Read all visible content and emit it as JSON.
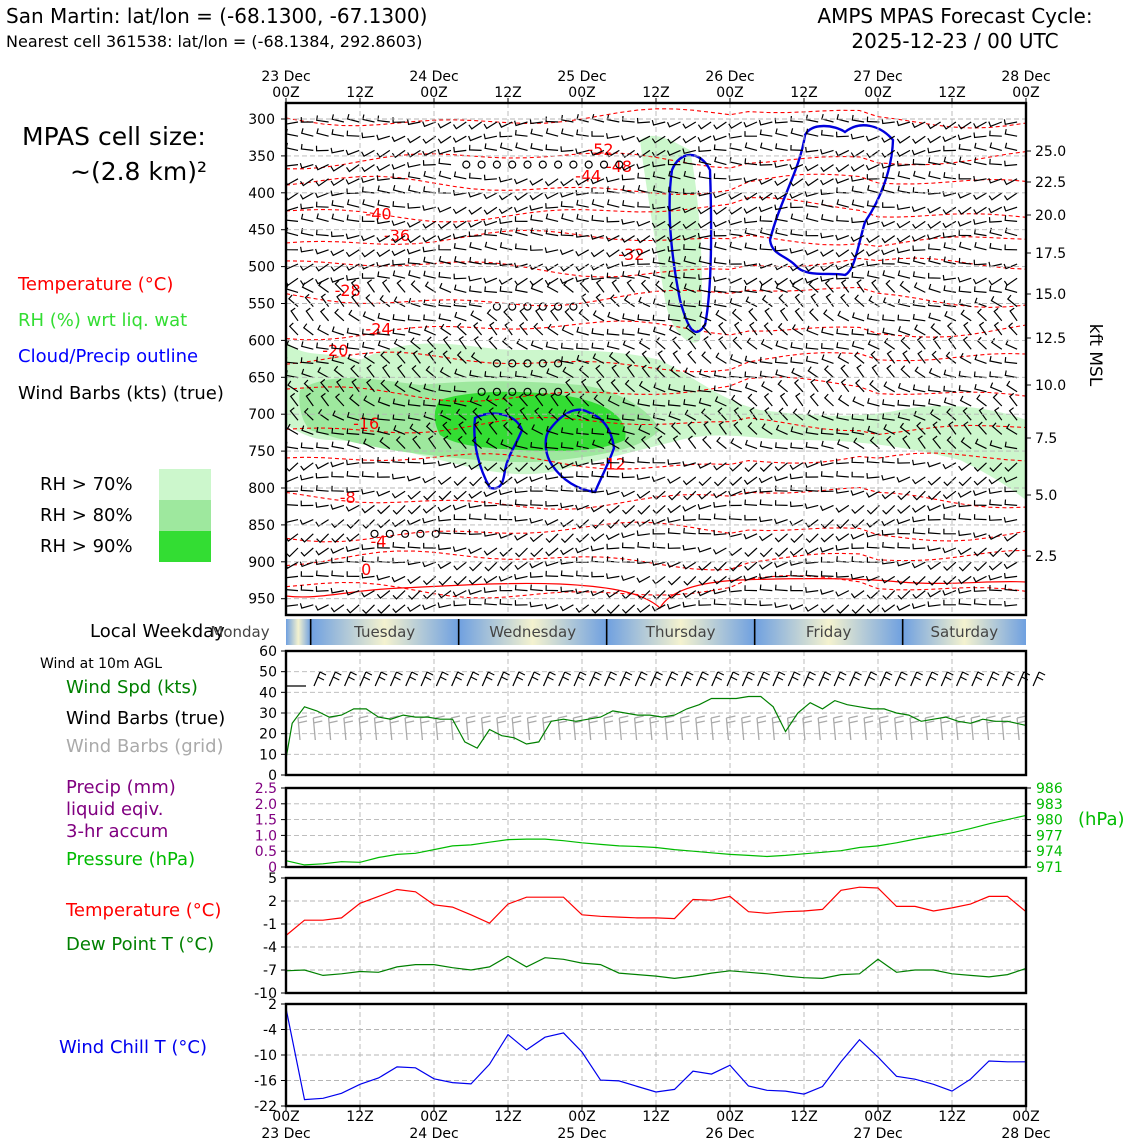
{
  "header": {
    "site_line": "San Martin: lat/lon = (-68.1300, -67.1300)",
    "cell_line": "Nearest cell 361538: lat/lon = (-68.1384, 292.8603)",
    "cycle_line1": "AMPS MPAS Forecast Cycle:",
    "cycle_line2": "2025-12-23 / 00 UTC"
  },
  "cell_size": {
    "line1": "MPAS cell size:",
    "line2": "~(2.8 km)²"
  },
  "legend": {
    "temperature": "Temperature (°C)",
    "rh": "RH (%) wrt liq. wat",
    "cloud": "Cloud/Precip outline",
    "barbs": "Wind Barbs (kts) (true)",
    "rh70": "RH > 70%",
    "rh80": "RH > 80%",
    "rh90": "RH > 90%",
    "colors": {
      "rh70": "#ccf7cc",
      "rh80": "#9ee89e",
      "rh90": "#33dd33"
    }
  },
  "weekday": {
    "label": "Local Weekday",
    "days": [
      "Monday",
      "Tuesday",
      "Wednesday",
      "Thursday",
      "Friday",
      "Saturday"
    ]
  },
  "wind_labels": {
    "title": "Wind at 10m AGL",
    "speed": "Wind Spd (kts)",
    "barbs_true": "Wind Barbs (true)",
    "barbs_grid": "Wind Barbs (grid)"
  },
  "precip_labels": {
    "l1": "Precip (mm)",
    "l2": "liquid eqiv.",
    "l3": "3-hr accum",
    "pressure": "Pressure (hPa)",
    "units": "(hPa)"
  },
  "temp_labels": {
    "temp": "Temperature (°C)",
    "dew": "Dew Point T (°C)"
  },
  "chill_labels": {
    "chill": "Wind Chill T (°C)"
  },
  "colors": {
    "temp": "#ff0000",
    "dew": "#008000",
    "wind": "#008000",
    "pressure": "#00bb00",
    "precip": "#800080",
    "chill": "#0000ee",
    "cloud": "#0000dd"
  },
  "chart_data": [
    {
      "type": "heatmap",
      "name": "time-height cross section",
      "x_ticks": [
        "23 Dec 00Z",
        "12Z",
        "24 Dec 00Z",
        "12Z",
        "25 Dec 00Z",
        "12Z",
        "26 Dec 00Z",
        "12Z",
        "27 Dec 00Z",
        "12Z",
        "28 Dec 00Z"
      ],
      "x_top_dates": [
        "23 Dec",
        "",
        "24 Dec",
        "",
        "25 Dec",
        "",
        "26 Dec",
        "",
        "27 Dec",
        "",
        "28 Dec"
      ],
      "x_top_hours": [
        "00Z",
        "12Z",
        "00Z",
        "12Z",
        "00Z",
        "12Z",
        "00Z",
        "12Z",
        "00Z",
        "12Z",
        "00Z"
      ],
      "x_range_hours": [
        0,
        120
      ],
      "y_label_right": "kft MSL",
      "y_range_hpa": [
        965,
        290
      ],
      "y_ticks_hpa": [
        300,
        350,
        400,
        450,
        500,
        550,
        600,
        650,
        700,
        750,
        800,
        850,
        900,
        950
      ],
      "y_ticks_kft": [
        25.0,
        22.5,
        20.0,
        17.5,
        15.0,
        12.5,
        10.0,
        7.5,
        5.0,
        2.5
      ],
      "temperature_contour_labels": [
        {
          "t": 49,
          "p": 385,
          "v": "-44"
        },
        {
          "t": 51,
          "p": 349,
          "v": "-52"
        },
        {
          "t": 54,
          "p": 372,
          "v": "-48"
        },
        {
          "t": 15,
          "p": 436,
          "v": "-40"
        },
        {
          "t": 18,
          "p": 465,
          "v": "-36"
        },
        {
          "t": 56,
          "p": 491,
          "v": "-32"
        },
        {
          "t": 10,
          "p": 540,
          "v": "-28"
        },
        {
          "t": 15,
          "p": 592,
          "v": "-24"
        },
        {
          "t": 8,
          "p": 621,
          "v": "-20"
        },
        {
          "t": 13,
          "p": 720,
          "v": "-16"
        },
        {
          "t": 53,
          "p": 775,
          "v": "-12"
        },
        {
          "t": 10,
          "p": 820,
          "v": "-8"
        },
        {
          "t": 15,
          "p": 880,
          "v": "-4"
        },
        {
          "t": 13,
          "p": 918,
          "v": "0"
        }
      ]
    },
    {
      "type": "line",
      "name": "10m wind speed",
      "title": "Wind at 10m AGL",
      "ylabel": "Wind Spd (kts)",
      "ylim": [
        0,
        60
      ],
      "y_ticks": [
        0,
        10,
        20,
        30,
        40,
        50,
        60
      ],
      "x_hours": [
        0,
        1,
        3,
        5,
        7,
        9,
        11,
        13,
        15,
        17,
        19,
        21,
        23,
        25,
        27,
        29,
        31,
        33,
        35,
        37,
        39,
        41,
        43,
        45,
        47,
        49,
        51,
        53,
        55,
        57,
        59,
        61,
        63,
        65,
        67,
        69,
        71,
        73,
        75,
        77,
        79,
        81,
        83,
        85,
        87,
        89,
        91,
        93,
        95,
        97,
        99,
        101,
        103,
        105,
        107,
        109,
        111,
        113,
        115,
        117,
        120
      ],
      "series": [
        {
          "name": "Wind Spd (kts)",
          "values": [
            8,
            25,
            33,
            31,
            28,
            29,
            32,
            32,
            28,
            27,
            29,
            28,
            28,
            27,
            27,
            16,
            13,
            22,
            19,
            18,
            15,
            16,
            26,
            27,
            26,
            27,
            28,
            31,
            30,
            29,
            29,
            28,
            29,
            32,
            34,
            37,
            37,
            37,
            38,
            38,
            33,
            21,
            30,
            35,
            32,
            36,
            34,
            33,
            32,
            32,
            30,
            29,
            26,
            27,
            28,
            26,
            25,
            27,
            26,
            26,
            24
          ]
        }
      ]
    },
    {
      "type": "line",
      "name": "precipitation and pressure",
      "ylabel": "Precip (mm) liquid eqiv. 3-hr accum",
      "ylim": [
        0,
        2.5
      ],
      "y_ticks": [
        0,
        0.5,
        1.0,
        1.5,
        2.0,
        2.5
      ],
      "y2label": "Pressure (hPa)",
      "y2lim": [
        971,
        986
      ],
      "y2_ticks": [
        971,
        974,
        977,
        980,
        983,
        986
      ],
      "x_hours": [
        0,
        3,
        6,
        9,
        12,
        15,
        18,
        21,
        24,
        27,
        30,
        33,
        36,
        39,
        42,
        45,
        48,
        51,
        54,
        57,
        60,
        63,
        66,
        69,
        72,
        75,
        78,
        81,
        84,
        87,
        90,
        93,
        96,
        99,
        102,
        105,
        108,
        111,
        114,
        117,
        120
      ],
      "series": [
        {
          "name": "Precip (mm)",
          "values": [
            0,
            0,
            0,
            0,
            0,
            0,
            0,
            0,
            0,
            0,
            0,
            0,
            0,
            0,
            0,
            0,
            0,
            0,
            0,
            0,
            0,
            0,
            0,
            0,
            0,
            0,
            0,
            0,
            0,
            0,
            0,
            0,
            0,
            0,
            0,
            0,
            0,
            0,
            0,
            0,
            0
          ]
        },
        {
          "name": "Pressure (hPa)",
          "values": [
            972.2,
            971.4,
            971.6,
            972.0,
            971.9,
            972.8,
            973.4,
            973.6,
            974.3,
            975.0,
            975.2,
            975.7,
            976.2,
            976.3,
            976.3,
            976.0,
            975.6,
            975.3,
            975.0,
            974.9,
            974.7,
            974.3,
            974.0,
            973.7,
            973.4,
            973.2,
            973.0,
            973.2,
            973.5,
            973.8,
            974.1,
            974.7,
            975.0,
            975.6,
            976.3,
            976.9,
            977.5,
            978.3,
            979.2,
            980.0,
            980.8
          ]
        }
      ]
    },
    {
      "type": "line",
      "name": "temperature and dew point",
      "ylim": [
        -10,
        5
      ],
      "y_ticks": [
        -10,
        -7,
        -4,
        -1,
        2,
        5
      ],
      "x_hours": [
        0,
        3,
        6,
        9,
        12,
        15,
        18,
        21,
        24,
        27,
        30,
        33,
        36,
        39,
        42,
        45,
        48,
        51,
        54,
        57,
        60,
        63,
        66,
        69,
        72,
        75,
        78,
        81,
        84,
        87,
        90,
        93,
        96,
        99,
        102,
        105,
        108,
        111,
        114,
        117,
        120
      ],
      "series": [
        {
          "name": "Temperature (°C)",
          "values": [
            -2.5,
            -0.5,
            -0.5,
            -0.2,
            1.7,
            2.6,
            3.5,
            3.2,
            1.5,
            1.2,
            0.2,
            -0.9,
            1.6,
            2.5,
            2.5,
            2.5,
            0.2,
            0.0,
            -0.1,
            -0.2,
            -0.2,
            -0.3,
            2.2,
            2.1,
            2.6,
            0.6,
            0.4,
            0.6,
            0.7,
            0.9,
            3.4,
            3.8,
            3.7,
            1.3,
            1.3,
            0.7,
            1.1,
            1.6,
            2.6,
            2.6,
            0.6
          ]
        },
        {
          "name": "Dew Point T (°C)",
          "values": [
            -7.1,
            -7.0,
            -7.7,
            -7.5,
            -7.2,
            -7.3,
            -6.6,
            -6.3,
            -6.3,
            -6.7,
            -7.0,
            -6.6,
            -5.2,
            -6.6,
            -5.4,
            -5.6,
            -6.1,
            -6.3,
            -7.4,
            -7.6,
            -7.8,
            -8.1,
            -7.8,
            -7.4,
            -7.1,
            -7.3,
            -7.5,
            -7.8,
            -8.0,
            -8.1,
            -7.6,
            -7.5,
            -5.6,
            -7.3,
            -7.0,
            -7.0,
            -7.5,
            -7.7,
            -7.9,
            -7.6,
            -6.8
          ]
        }
      ]
    },
    {
      "type": "line",
      "name": "wind chill",
      "ylabel": "Wind Chill T (°C)",
      "ylim": [
        -22,
        2
      ],
      "y_ticks": [
        -22,
        -16,
        -10,
        -4,
        2
      ],
      "x_hours": [
        0,
        3,
        6,
        9,
        12,
        15,
        18,
        21,
        24,
        27,
        30,
        33,
        36,
        39,
        42,
        45,
        48,
        51,
        54,
        57,
        60,
        63,
        66,
        69,
        72,
        75,
        78,
        81,
        84,
        87,
        90,
        93,
        96,
        99,
        102,
        105,
        108,
        111,
        114,
        117,
        120
      ],
      "series": [
        {
          "name": "Wind Chill T (°C)",
          "values": [
            1.0,
            -20.5,
            -20.2,
            -19.0,
            -16.9,
            -15.4,
            -12.8,
            -13.0,
            -15.6,
            -16.5,
            -16.8,
            -12.2,
            -5.2,
            -8.8,
            -5.8,
            -4.8,
            -9.3,
            -15.9,
            -16.1,
            -17.4,
            -18.7,
            -18.1,
            -13.8,
            -14.5,
            -12.4,
            -17.3,
            -18.3,
            -18.5,
            -19.2,
            -17.4,
            -11.6,
            -6.4,
            -10.5,
            -15.0,
            -15.7,
            -16.9,
            -18.5,
            -15.7,
            -11.4,
            -11.6,
            -11.6
          ]
        }
      ]
    }
  ]
}
